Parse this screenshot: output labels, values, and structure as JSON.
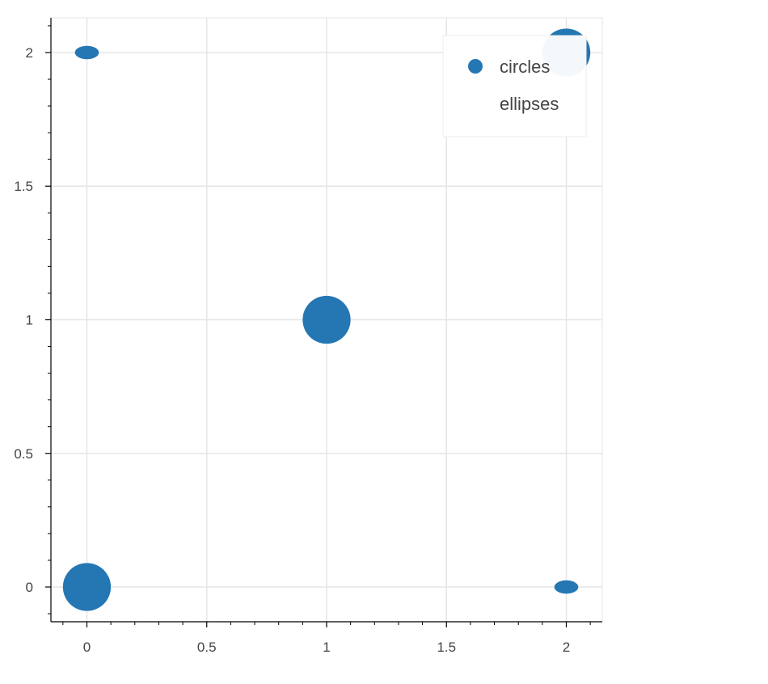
{
  "chart_data": {
    "type": "scatter",
    "title": "",
    "xlabel": "",
    "ylabel": "",
    "xlim": [
      -0.15,
      2.15
    ],
    "ylim": [
      -0.13,
      2.13
    ],
    "grid": true,
    "legend_position": "top-right",
    "x_ticks": [
      "0",
      "0.5",
      "1",
      "1.5",
      "2"
    ],
    "x_tick_values": [
      0,
      0.5,
      1,
      1.5,
      2
    ],
    "y_ticks": [
      "0",
      "0.5",
      "1",
      "1.5",
      "2"
    ],
    "y_tick_values": [
      0,
      0.5,
      1,
      1.5,
      2
    ],
    "series": [
      {
        "name": "circles",
        "color": "#2577b4",
        "marker": "circle",
        "points": [
          {
            "x": 0,
            "y": 0,
            "size": 0.2
          },
          {
            "x": 1,
            "y": 1,
            "size": 0.2
          },
          {
            "x": 2,
            "y": 2,
            "size": 0.2
          }
        ]
      },
      {
        "name": "ellipses",
        "color": "#2577b4",
        "marker": "ellipse",
        "points": [
          {
            "x": 0,
            "y": 2,
            "width": 0.1,
            "height": 0.05
          },
          {
            "x": 2,
            "y": 0,
            "width": 0.1,
            "height": 0.05
          }
        ]
      }
    ]
  }
}
